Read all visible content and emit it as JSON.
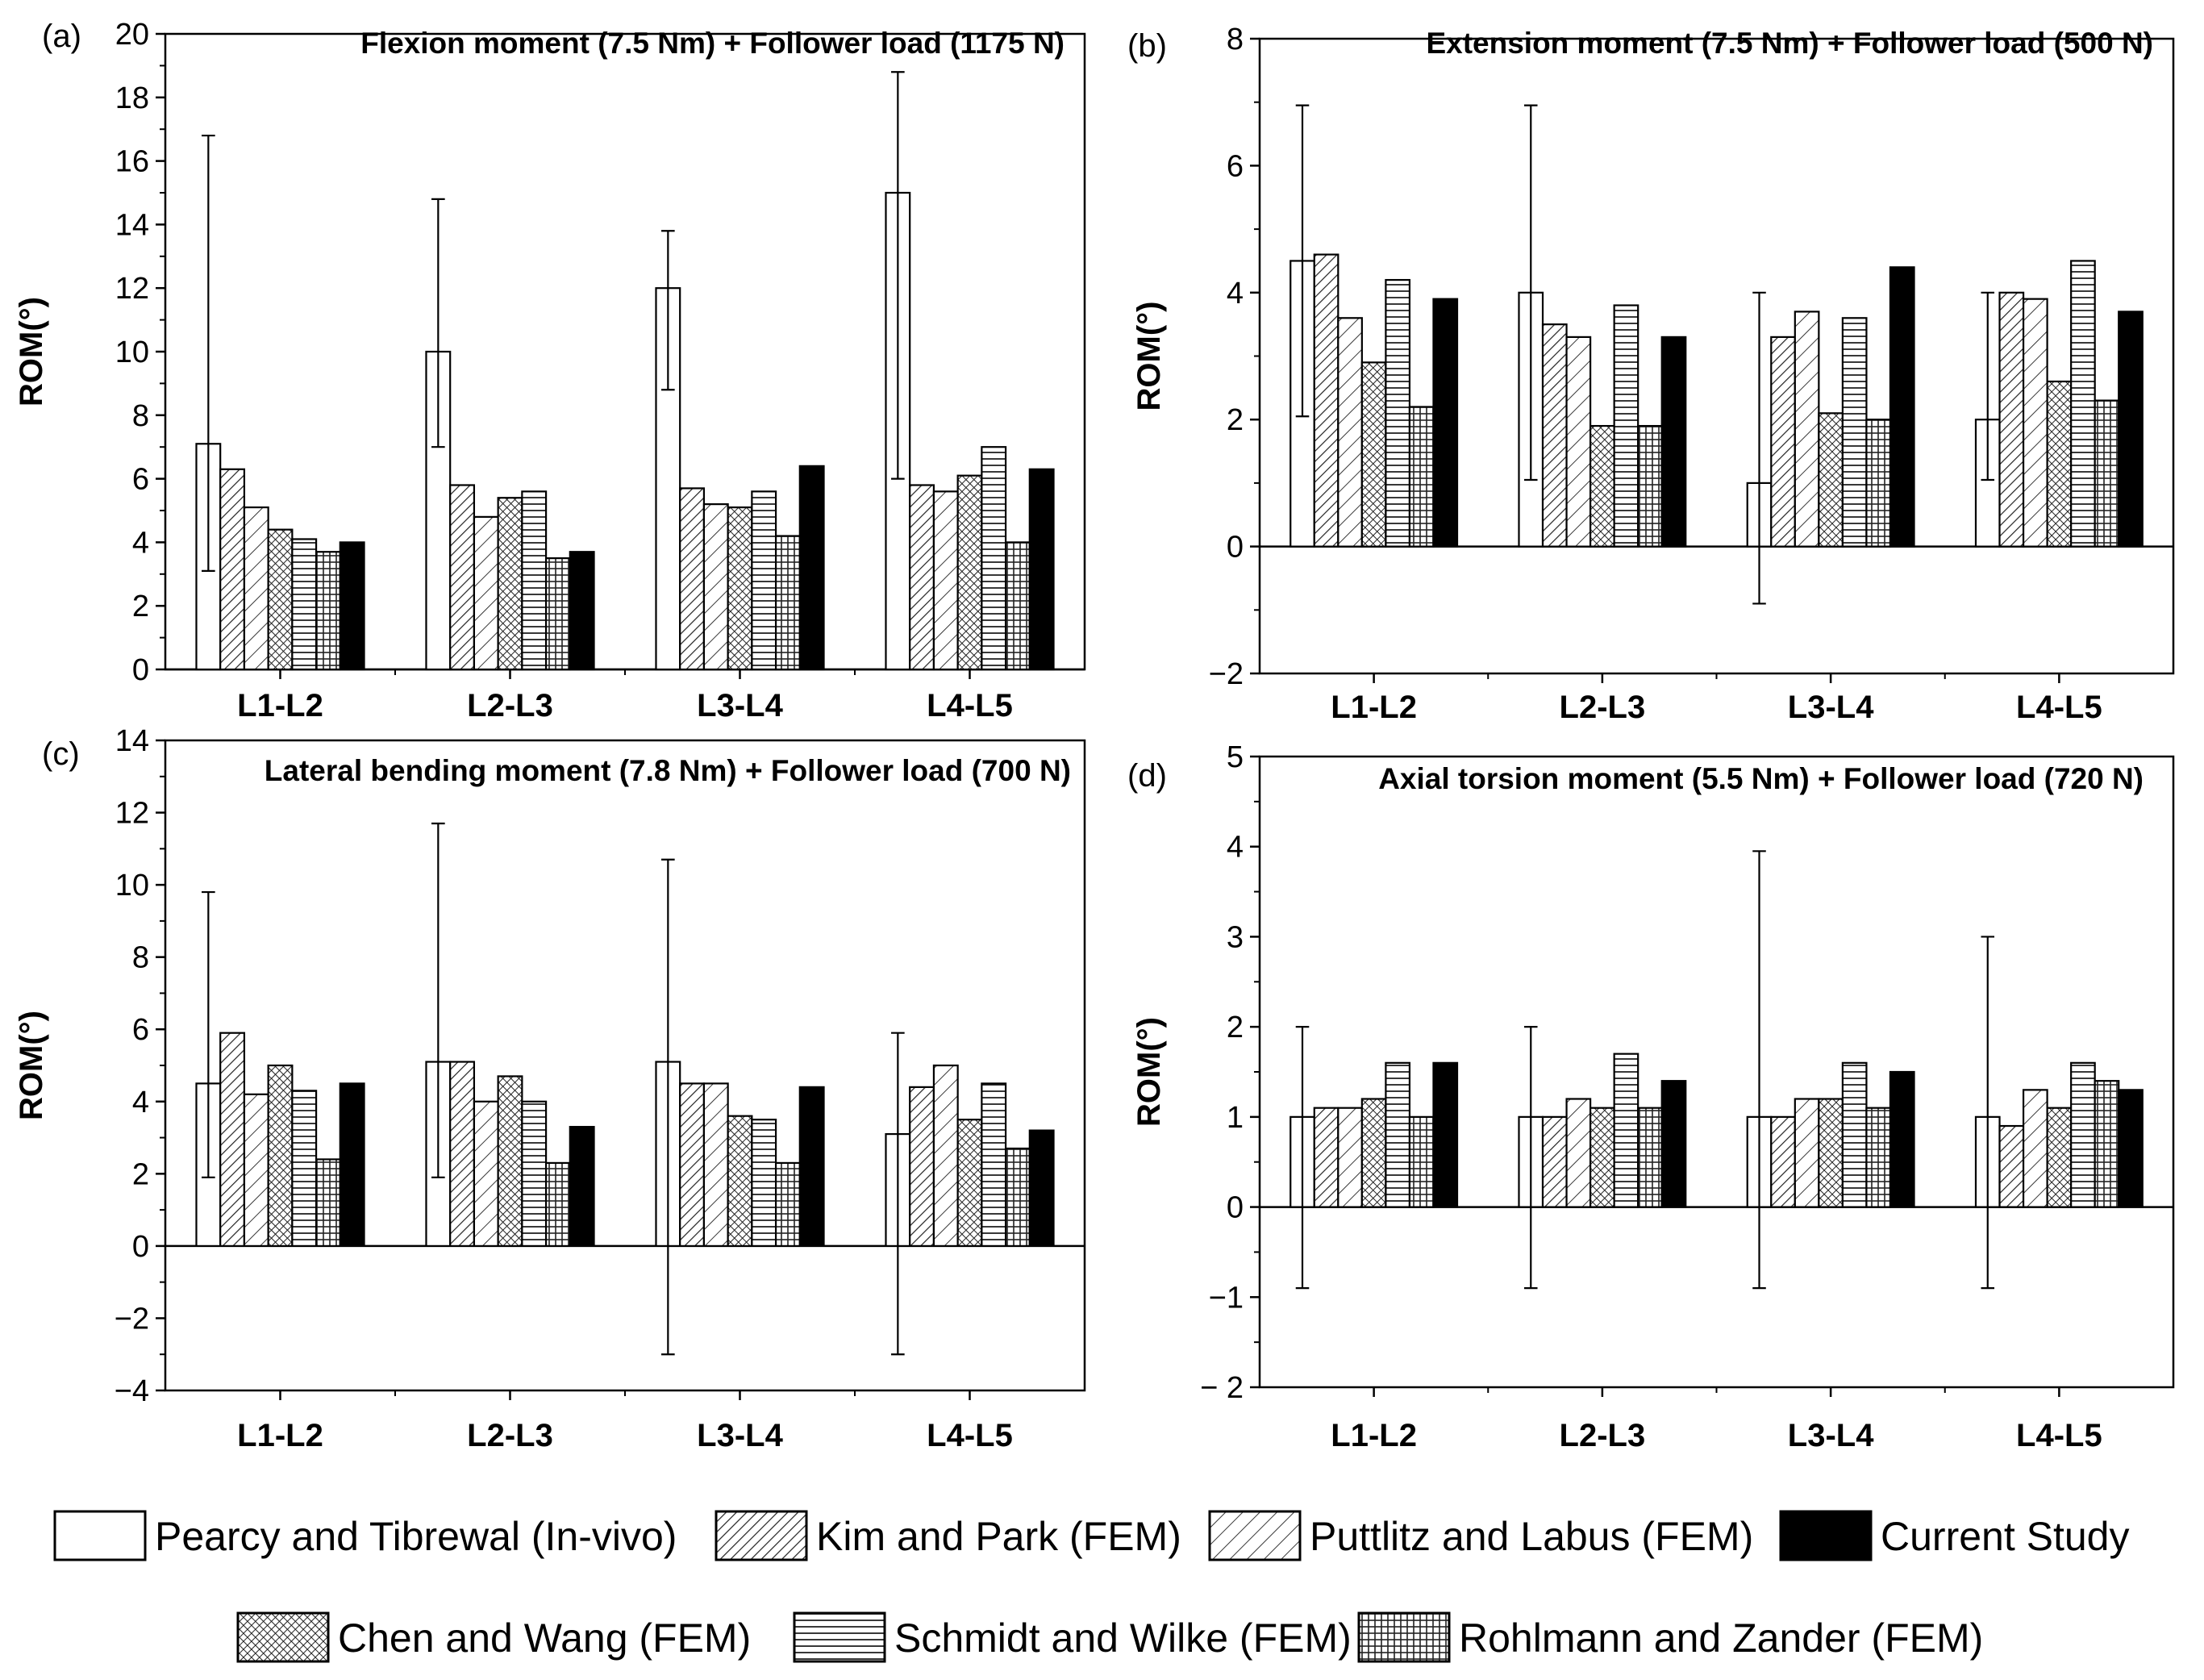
{
  "chart_data": [
    {
      "type": "bar",
      "panel_label": "(a)",
      "title": "Flexion moment (7.5 Nm) + Follower load (1175 N)",
      "ylabel": "ROM(°)",
      "ylim": [
        0,
        20
      ],
      "yticks": [
        "0",
        "2",
        "4",
        "6",
        "8",
        "10",
        "12",
        "14",
        "16",
        "18",
        "20"
      ],
      "categories": [
        "L1-L2",
        "L2-L3",
        "L3-L4",
        "L4-L5"
      ],
      "series": [
        {
          "name": "Pearcy and Tibrewal (In-vivo)",
          "values": [
            7.1,
            10.0,
            12.0,
            15.0
          ],
          "err_low": [
            3.1,
            7.0,
            8.8,
            6.0
          ],
          "err_high": [
            16.8,
            14.8,
            13.8,
            18.8
          ]
        },
        {
          "name": "Kim and Park (FEM)",
          "values": [
            6.3,
            5.8,
            5.7,
            5.8
          ]
        },
        {
          "name": "Puttlitz and Labus (FEM)",
          "values": [
            5.1,
            4.8,
            5.2,
            5.6
          ]
        },
        {
          "name": "Chen and Wang (FEM)",
          "values": [
            4.4,
            5.4,
            5.1,
            6.1
          ]
        },
        {
          "name": "Schmidt and Wilke (FEM)",
          "values": [
            4.1,
            5.6,
            5.6,
            7.0
          ]
        },
        {
          "name": "Rohlmann and Zander (FEM)",
          "values": [
            3.7,
            3.5,
            4.2,
            4.0
          ]
        },
        {
          "name": "Current Study",
          "values": [
            4.0,
            3.7,
            6.4,
            6.3
          ]
        }
      ]
    },
    {
      "type": "bar",
      "panel_label": "(b)",
      "title": "Extension moment (7.5 Nm) + Follower load (500 N)",
      "ylabel": "ROM(°)",
      "ylim": [
        -2,
        8
      ],
      "yticks": [
        "−2",
        "0",
        "2",
        "4",
        "6",
        "8"
      ],
      "categories": [
        "L1-L2",
        "L2-L3",
        "L3-L4",
        "L4-L5"
      ],
      "series": [
        {
          "name": "Pearcy and Tibrewal (In-vivo)",
          "values": [
            4.5,
            4.0,
            1.0,
            2.0
          ],
          "err_low": [
            2.05,
            1.05,
            -0.9,
            1.05
          ],
          "err_high": [
            6.95,
            6.95,
            4.0,
            4.0
          ]
        },
        {
          "name": "Kim and Park (FEM)",
          "values": [
            4.6,
            3.5,
            3.3,
            4.0
          ]
        },
        {
          "name": "Puttlitz and Labus (FEM)",
          "values": [
            3.6,
            3.3,
            3.7,
            3.9
          ]
        },
        {
          "name": "Chen and Wang (FEM)",
          "values": [
            2.9,
            1.9,
            2.1,
            2.6
          ]
        },
        {
          "name": "Schmidt and Wilke (FEM)",
          "values": [
            4.2,
            3.8,
            3.6,
            4.5
          ]
        },
        {
          "name": "Rohlmann and Zander (FEM)",
          "values": [
            2.2,
            1.9,
            2.0,
            2.3
          ]
        },
        {
          "name": "Current Study",
          "values": [
            3.9,
            3.3,
            4.4,
            3.7
          ]
        }
      ]
    },
    {
      "type": "bar",
      "panel_label": "(c)",
      "title": "Lateral bending moment (7.8 Nm) + Follower load (700 N)",
      "ylabel": "ROM(°)",
      "ylim": [
        -4,
        14
      ],
      "yticks": [
        "−4",
        "−2",
        "0",
        "2",
        "4",
        "6",
        "8",
        "10",
        "12",
        "14"
      ],
      "categories": [
        "L1-L2",
        "L2-L3",
        "L3-L4",
        "L4-L5"
      ],
      "series": [
        {
          "name": "Pearcy and Tibrewal (In-vivo)",
          "values": [
            4.5,
            5.1,
            5.1,
            3.1
          ],
          "err_low": [
            1.9,
            1.9,
            -3.0,
            -3.0
          ],
          "err_high": [
            9.8,
            11.7,
            10.7,
            5.9
          ]
        },
        {
          "name": "Kim and Park (FEM)",
          "values": [
            5.9,
            5.1,
            4.5,
            4.4
          ]
        },
        {
          "name": "Puttlitz and Labus (FEM)",
          "values": [
            4.2,
            4.0,
            4.5,
            5.0
          ]
        },
        {
          "name": "Chen and Wang (FEM)",
          "values": [
            5.0,
            4.7,
            3.6,
            3.5
          ]
        },
        {
          "name": "Schmidt and Wilke (FEM)",
          "values": [
            4.3,
            4.0,
            3.5,
            4.5
          ]
        },
        {
          "name": "Rohlmann and Zander (FEM)",
          "values": [
            2.4,
            2.3,
            2.3,
            2.7
          ]
        },
        {
          "name": "Current Study",
          "values": [
            4.5,
            3.3,
            4.4,
            3.2
          ]
        }
      ]
    },
    {
      "type": "bar",
      "panel_label": "(d)",
      "title": "Axial torsion moment (5.5 Nm) + Follower load (720 N)",
      "ylabel": "ROM(°)",
      "ylim": [
        -2,
        5
      ],
      "yticks": [
        "− 2",
        "−1",
        "0",
        "1",
        "2",
        "3",
        "4",
        "5"
      ],
      "categories": [
        "L1-L2",
        "L2-L3",
        "L3-L4",
        "L4-L5"
      ],
      "series": [
        {
          "name": "Pearcy and Tibrewal (In-vivo)",
          "values": [
            1.0,
            1.0,
            1.0,
            1.0
          ],
          "err_low": [
            -0.9,
            -0.9,
            -0.9,
            -0.9
          ],
          "err_high": [
            2.0,
            2.0,
            3.95,
            3.0
          ]
        },
        {
          "name": "Kim and Park (FEM)",
          "values": [
            1.1,
            1.0,
            1.0,
            0.9
          ]
        },
        {
          "name": "Puttlitz and Labus (FEM)",
          "values": [
            1.1,
            1.2,
            1.2,
            1.3
          ]
        },
        {
          "name": "Chen and Wang (FEM)",
          "values": [
            1.2,
            1.1,
            1.2,
            1.1
          ]
        },
        {
          "name": "Schmidt and Wilke (FEM)",
          "values": [
            1.6,
            1.7,
            1.6,
            1.6
          ]
        },
        {
          "name": "Rohlmann and Zander (FEM)",
          "values": [
            1.0,
            1.1,
            1.1,
            1.4
          ]
        },
        {
          "name": "Current Study",
          "values": [
            1.6,
            1.4,
            1.5,
            1.3
          ]
        }
      ]
    }
  ],
  "legend": {
    "row1": [
      {
        "label": "Pearcy and Tibrewal (In-vivo)",
        "pattern": "open"
      },
      {
        "label": "Kim and Park (FEM)",
        "pattern": "hatch-dense"
      },
      {
        "label": "Puttlitz and Labus (FEM)",
        "pattern": "hatch-wide"
      },
      {
        "label": "Current Study",
        "pattern": "solid"
      }
    ],
    "row2": [
      {
        "label": "Chen and Wang (FEM)",
        "pattern": "crosshatch"
      },
      {
        "label": "Schmidt and Wilke (FEM)",
        "pattern": "horizontal"
      },
      {
        "label": "Rohlmann and Zander (FEM)",
        "pattern": "grid"
      }
    ]
  }
}
